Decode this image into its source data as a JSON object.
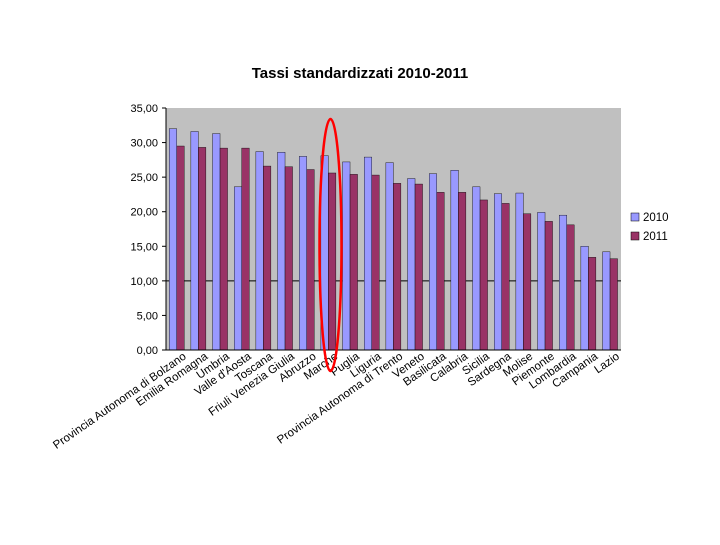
{
  "chart_data": {
    "type": "bar",
    "title": "Tassi standardizzati 2010-2011",
    "xlabel": "",
    "ylabel": "",
    "ylim": [
      0,
      35
    ],
    "y_ticks": [
      "0,00",
      "5,00",
      "10,00",
      "15,00",
      "20,00",
      "25,00",
      "30,00",
      "35,00"
    ],
    "grid": false,
    "reference_line": 10,
    "legend_position": "right",
    "categories": [
      "Provincia Autonoma di Bolzano",
      "Emilia Romagna",
      "Umbria",
      "Valle d'Aosta",
      "Toscana",
      "Friuli Venezia Giulia",
      "Abruzzo",
      "Marche",
      "Puglia",
      "Liguria",
      "Provincia Autonoma di Trento",
      "Veneto",
      "Basilicata",
      "Calabria",
      "Sicilia",
      "Sardegna",
      "Molise",
      "Piemonte",
      "Lombardia",
      "Campania",
      "Lazio"
    ],
    "series": [
      {
        "name": "2010",
        "color": "#9999ff",
        "values": [
          32.0,
          31.6,
          31.3,
          23.6,
          28.7,
          28.6,
          28.0,
          28.1,
          27.2,
          27.9,
          27.1,
          24.8,
          25.5,
          26.0,
          23.6,
          22.6,
          22.7,
          19.9,
          19.5,
          15.0,
          14.2
        ]
      },
      {
        "name": "2011",
        "color": "#993366",
        "values": [
          29.5,
          29.3,
          29.2,
          29.2,
          26.6,
          26.5,
          26.1,
          25.6,
          25.4,
          25.3,
          24.1,
          24.0,
          22.8,
          22.8,
          21.7,
          21.2,
          19.7,
          18.6,
          18.1,
          13.4,
          13.2
        ]
      }
    ],
    "highlight": {
      "category": "Marche",
      "color": "#ff0000"
    },
    "colors": {
      "plot_bg": "#c0c0c0",
      "axis": "#000000"
    }
  }
}
